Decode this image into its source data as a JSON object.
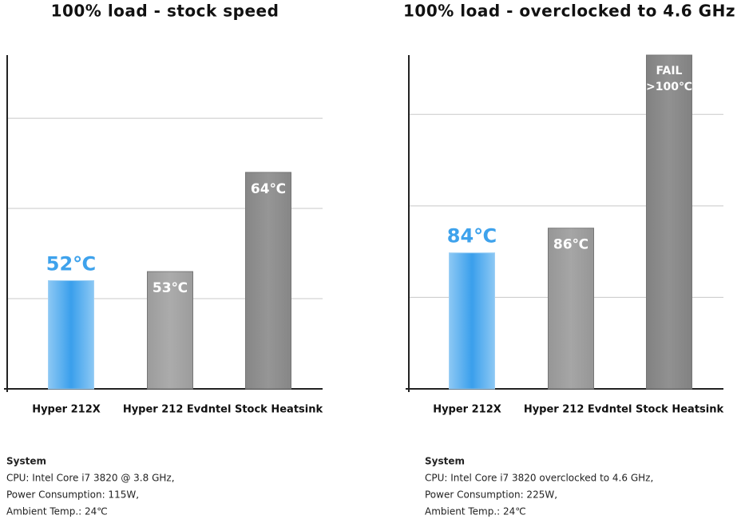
{
  "chart_data": [
    {
      "type": "bar",
      "title": "100% load - stock speed",
      "categories": [
        "Hyper 212X",
        "Hyper 212 Evo",
        "Intel Stock Heatsink"
      ],
      "values": [
        52,
        53,
        64
      ],
      "value_labels": [
        "52℃",
        "53℃",
        "64℃"
      ],
      "colors": [
        "#3ea2ec",
        "#a6a6a6",
        "#8f8f8f"
      ],
      "highlight_color": "#3ea2ec",
      "ylim": [
        40,
        77
      ],
      "yticks": [
        50,
        60,
        70
      ],
      "grid": true,
      "notes": [
        "System",
        "CPU: Intel Core i7 3820 @ 3.8 GHz,",
        "Power Consumption: 115W,",
        "Ambient Temp.: 24℃"
      ]
    },
    {
      "type": "bar",
      "title": "100% load - overclocked to 4.6 GHz",
      "categories": [
        "Hyper 212X",
        "Hyper 212 Evo",
        "Intel Stock Heatsink"
      ],
      "values": [
        84,
        86,
        100
      ],
      "value_labels": [
        "84℃",
        "86℃",
        [
          "FAIL",
          ">100℃"
        ]
      ],
      "colors": [
        "#3ea2ec",
        "#a0a0a0",
        "#8a8a8a"
      ],
      "highlight_color": "#3ea2ec",
      "ylim": [
        73,
        100
      ],
      "yticks": [
        80.4,
        87.8,
        95.2
      ],
      "grid": true,
      "notes": [
        "System",
        "CPU: Intel Core i7 3820 overclocked to 4.6 GHz,",
        "Power Consumption: 225W,",
        "Ambient Temp.: 24℃"
      ]
    }
  ]
}
